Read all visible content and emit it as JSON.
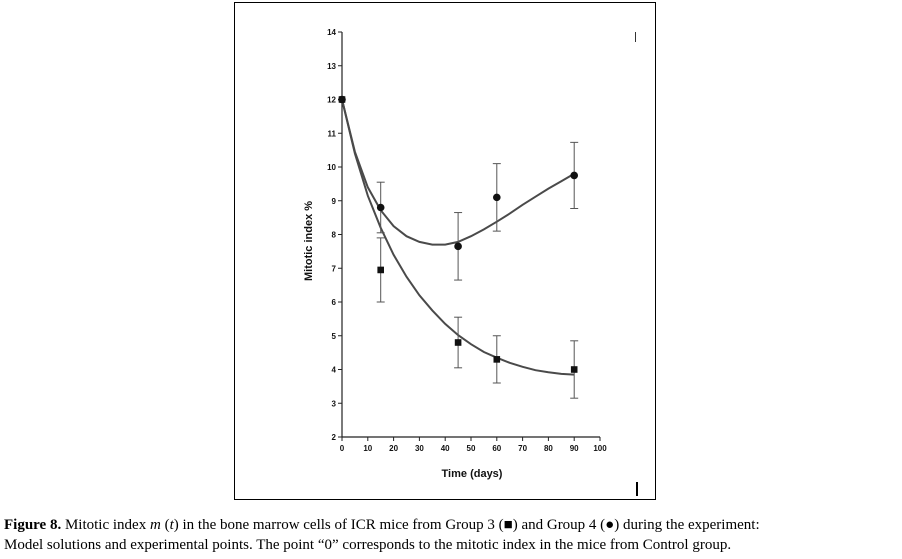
{
  "chart_data": {
    "type": "scatter",
    "title": "",
    "xlabel": "Time (days)",
    "ylabel": "Mitotic index %",
    "xlim": [
      0,
      100
    ],
    "ylim": [
      2,
      14
    ],
    "xticks": [
      0,
      10,
      20,
      30,
      40,
      50,
      60,
      70,
      80,
      90,
      100
    ],
    "yticks": [
      2,
      3,
      4,
      5,
      6,
      7,
      8,
      9,
      10,
      11,
      12,
      13,
      14
    ],
    "series": [
      {
        "marker": "square",
        "points": [
          {
            "x": 0,
            "y": 12,
            "err": 0
          },
          {
            "x": 15,
            "y": 6.95,
            "err": 0.95
          },
          {
            "x": 45,
            "y": 4.8,
            "err": 0.75
          },
          {
            "x": 60,
            "y": 4.3,
            "err": 0.7
          },
          {
            "x": 90,
            "y": 4.0,
            "err": 0.85
          }
        ],
        "model_curve": [
          [
            0,
            12
          ],
          [
            5,
            10.4
          ],
          [
            10,
            9.15
          ],
          [
            15,
            8.2
          ],
          [
            20,
            7.4
          ],
          [
            25,
            6.75
          ],
          [
            30,
            6.2
          ],
          [
            35,
            5.75
          ],
          [
            40,
            5.35
          ],
          [
            45,
            5.02
          ],
          [
            50,
            4.75
          ],
          [
            55,
            4.52
          ],
          [
            60,
            4.35
          ],
          [
            65,
            4.2
          ],
          [
            70,
            4.08
          ],
          [
            75,
            3.98
          ],
          [
            80,
            3.92
          ],
          [
            85,
            3.87
          ],
          [
            90,
            3.85
          ]
        ]
      },
      {
        "marker": "circle",
        "points": [
          {
            "x": 0,
            "y": 12,
            "err": 0
          },
          {
            "x": 15,
            "y": 8.8,
            "err": 0.75
          },
          {
            "x": 45,
            "y": 7.65,
            "err": 1.0
          },
          {
            "x": 60,
            "y": 9.1,
            "err": 1.0
          },
          {
            "x": 90,
            "y": 9.75,
            "err": 0.98
          }
        ],
        "model_curve": [
          [
            0,
            12
          ],
          [
            5,
            10.45
          ],
          [
            10,
            9.4
          ],
          [
            15,
            8.72
          ],
          [
            20,
            8.25
          ],
          [
            25,
            7.95
          ],
          [
            30,
            7.78
          ],
          [
            35,
            7.7
          ],
          [
            40,
            7.7
          ],
          [
            45,
            7.78
          ],
          [
            50,
            7.95
          ],
          [
            55,
            8.15
          ],
          [
            60,
            8.38
          ],
          [
            65,
            8.62
          ],
          [
            70,
            8.88
          ],
          [
            75,
            9.12
          ],
          [
            80,
            9.36
          ],
          [
            85,
            9.58
          ],
          [
            90,
            9.8
          ]
        ]
      }
    ]
  },
  "caption": {
    "label": "Figure 8.",
    "part1": " Mitotic index ",
    "m": "m",
    "paren_open": " (",
    "t": "t",
    "part2": ") in the bone marrow cells of ICR mice from Group 3 (■) and Group 4 (●) during the experiment:",
    "line2": "Model solutions and experimental points. The point “0” corresponds to the mitotic index in the mice from Control group."
  }
}
